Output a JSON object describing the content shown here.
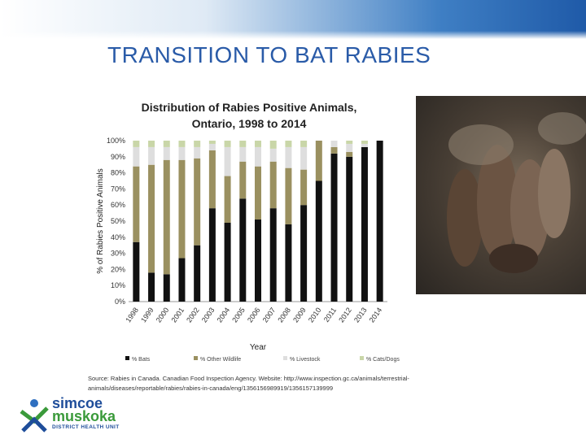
{
  "slide": {
    "title": "TRANSITION TO BAT RABIES",
    "source": "Source: Rabies in Canada. Canadian Food Inspection Agency. Website: http://www.inspection.gc.ca/animals/terrestrial-animals/diseases/reportable/rabies/rabies-in-canada/eng/1356156989919/1356157139999"
  },
  "logo": {
    "line1": "simcoe",
    "line2": "muskoka",
    "line3": "DISTRICT HEALTH UNIT"
  },
  "colors": {
    "title": "#2a5ba8",
    "bats": "#111111",
    "other_wildlife": "#9a9060",
    "livestock": "#dedede",
    "cats_dogs": "#c9d6a8"
  },
  "chart_data": {
    "type": "bar",
    "stacked": true,
    "title_line1": "Distribution of Rabies Positive Animals,",
    "title_line2": "Ontario, 1998 to 2014",
    "xlabel": "Year",
    "ylabel": "% of Rabies Positive Animals",
    "ylim": [
      0,
      100
    ],
    "yticks": [
      "0%",
      "10%",
      "20%",
      "30%",
      "40%",
      "50%",
      "60%",
      "70%",
      "80%",
      "90%",
      "100%"
    ],
    "categories": [
      "1998",
      "1999",
      "2000",
      "2001",
      "2002",
      "2003",
      "2004",
      "2005",
      "2006",
      "2007",
      "2008",
      "2009",
      "2010",
      "2011",
      "2012",
      "2013",
      "2014"
    ],
    "series": [
      {
        "name": "% Bats",
        "values": [
          37,
          18,
          17,
          27,
          35,
          58,
          49,
          64,
          51,
          58,
          48,
          60,
          75,
          92,
          90,
          96,
          100
        ]
      },
      {
        "name": "% Other Wildlife",
        "values": [
          47,
          67,
          71,
          61,
          54,
          36,
          29,
          23,
          33,
          29,
          35,
          22,
          25,
          4,
          3,
          0,
          0
        ]
      },
      {
        "name": "% Livestock",
        "values": [
          12,
          11,
          8,
          8,
          7,
          4,
          18,
          9,
          12,
          8,
          13,
          14,
          0,
          4,
          5,
          2,
          0
        ]
      },
      {
        "name": "% Cats/Dogs",
        "values": [
          4,
          4,
          4,
          4,
          4,
          2,
          4,
          4,
          4,
          5,
          4,
          4,
          0,
          0,
          2,
          2,
          0
        ]
      }
    ],
    "legend_position": "bottom",
    "grid": false
  }
}
